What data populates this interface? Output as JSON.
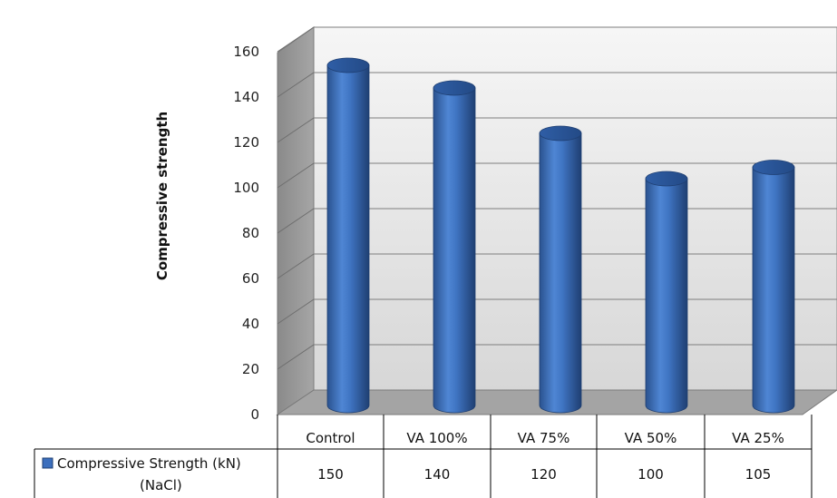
{
  "chart_data": {
    "type": "bar",
    "style": "3d-cylinder",
    "categories": [
      "Control",
      "VA 100%",
      "VA 75%",
      "VA 50%",
      "VA 25%"
    ],
    "series": [
      {
        "name": "Compressive Strength (kN)\n(NaCl)",
        "values": [
          150,
          140,
          120,
          100,
          105
        ],
        "color": "#3c6fbd"
      }
    ],
    "ylabel": "Compressive strength",
    "ylim": [
      0,
      160
    ],
    "yticks": [
      0,
      20,
      40,
      60,
      80,
      100,
      120,
      140,
      160
    ],
    "grid": true,
    "legend": "data-table",
    "legend_label_lines": [
      "Compressive Strength (kN)",
      "(NaCl)"
    ]
  }
}
